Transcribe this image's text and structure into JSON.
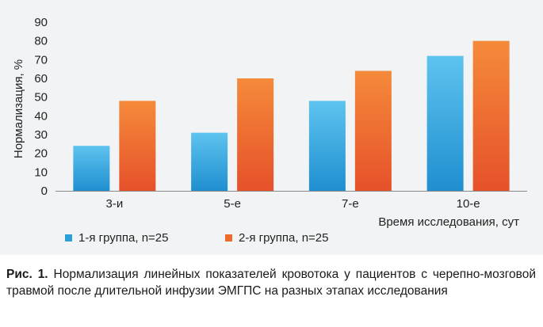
{
  "chart_data": {
    "type": "bar",
    "categories": [
      "3-и",
      "5-е",
      "7-е",
      "10-е"
    ],
    "series": [
      {
        "name": "1-я группа, n=25",
        "values": [
          24,
          31,
          48,
          72
        ],
        "color": "#2b9fd9"
      },
      {
        "name": "2-я группа, n=25",
        "values": [
          48,
          60,
          64,
          80
        ],
        "color": "#ee6a2c"
      }
    ],
    "ylim": [
      0,
      90
    ],
    "yticks": [
      0,
      10,
      20,
      30,
      40,
      50,
      60,
      70,
      80,
      90
    ],
    "ylabel": "Нормализация, %",
    "xlabel": "Время исследования, сут",
    "grid": false,
    "legend_position": "bottom-left"
  },
  "caption": {
    "label": "Рис. 1.",
    "text": "Нормализация линейных показателей кровотока у пациентов с черепно-мозговой травмой после длительной инфузии ЭМГПС на разных этапах исследования"
  }
}
